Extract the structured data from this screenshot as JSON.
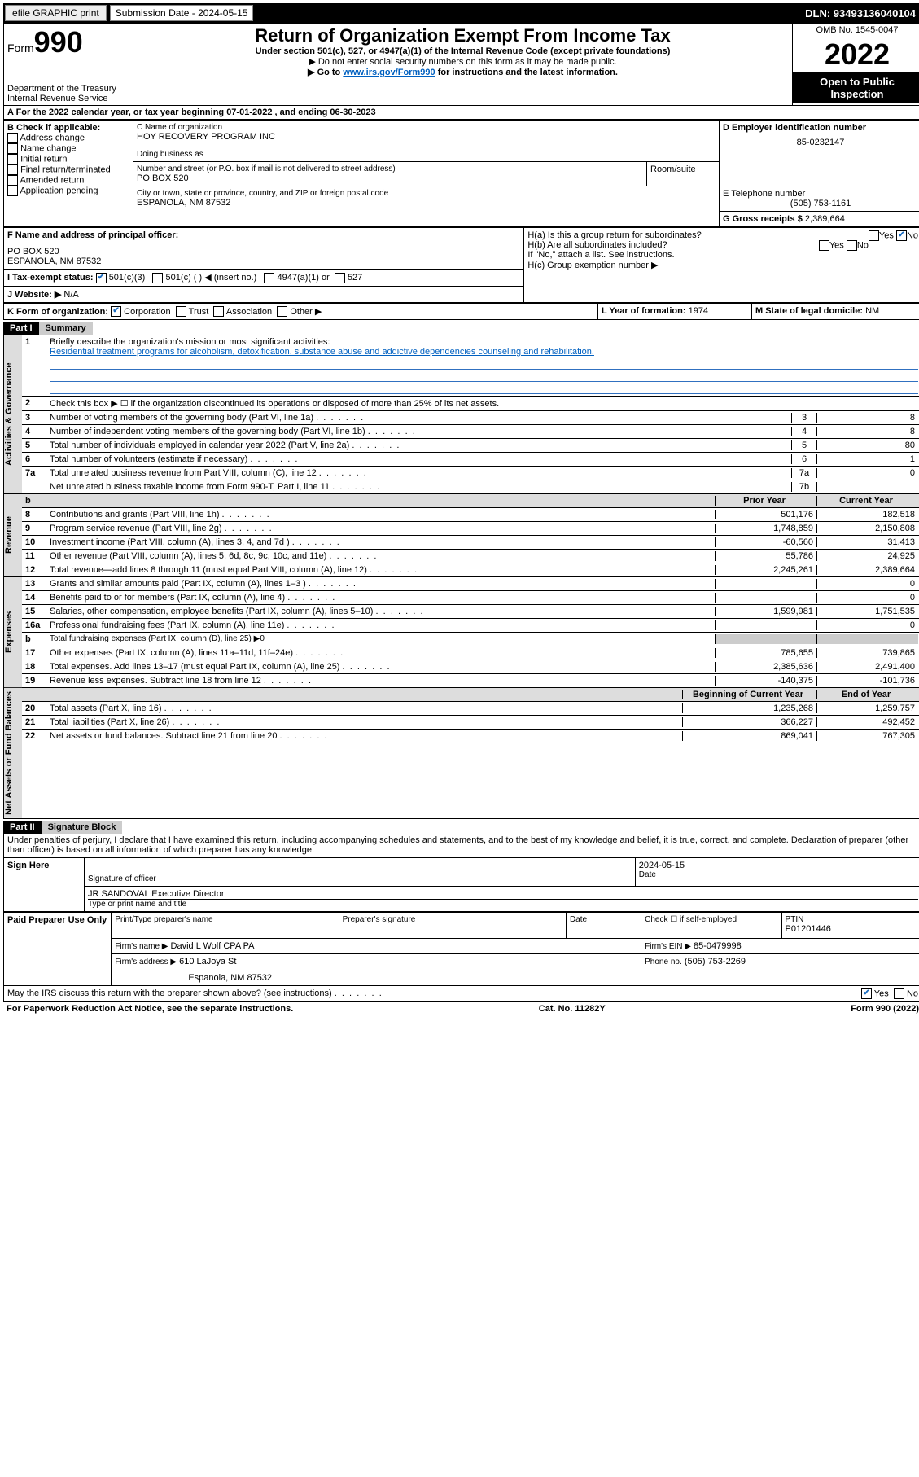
{
  "top": {
    "efile": "efile GRAPHIC print",
    "sub_label": "Submission Date - 2024-05-15",
    "dln": "DLN: 93493136040104"
  },
  "header": {
    "form_label": "Form",
    "form_num": "990",
    "dept": "Department of the Treasury",
    "irs": "Internal Revenue Service",
    "title": "Return of Organization Exempt From Income Tax",
    "sub1": "Under section 501(c), 527, or 4947(a)(1) of the Internal Revenue Code (except private foundations)",
    "sub2": "▶ Do not enter social security numbers on this form as it may be made public.",
    "sub3a": "▶ Go to ",
    "sub3_link": "www.irs.gov/Form990",
    "sub3b": " for instructions and the latest information.",
    "omb": "OMB No. 1545-0047",
    "year": "2022",
    "open": "Open to Public Inspection"
  },
  "a_line": {
    "a": "A For the 2022 calendar year, or tax year beginning 07-01-2022",
    "a2": ", and ending 06-30-2023"
  },
  "box_b": {
    "label": "B Check if applicable:",
    "items": [
      "Address change",
      "Name change",
      "Initial return",
      "Final return/terminated",
      "Amended return",
      "Application pending"
    ]
  },
  "box_c": {
    "label": "C Name of organization",
    "name": "HOY RECOVERY PROGRAM INC",
    "dba_label": "Doing business as",
    "addr_label": "Number and street (or P.O. box if mail is not delivered to street address)",
    "room_label": "Room/suite",
    "addr": "PO BOX 520",
    "city_label": "City or town, state or province, country, and ZIP or foreign postal code",
    "city": "ESPANOLA, NM  87532"
  },
  "box_d": {
    "label": "D Employer identification number",
    "ein": "85-0232147"
  },
  "box_e": {
    "label": "E Telephone number",
    "phone": "(505) 753-1161"
  },
  "box_g": {
    "label": "G Gross receipts $",
    "val": "2,389,664"
  },
  "box_f": {
    "label": "F Name and address of principal officer:",
    "addr1": "PO BOX 520",
    "addr2": "ESPANOLA, NM  87532"
  },
  "box_h": {
    "ha": "H(a)  Is this a group return for subordinates?",
    "hb": "H(b)  Are all subordinates included?",
    "hb_note": "If \"No,\" attach a list. See instructions.",
    "hc": "H(c)  Group exemption number ▶",
    "yes": "Yes",
    "no": "No"
  },
  "box_i": {
    "label": "I  Tax-exempt status:",
    "c3": "501(c)(3)",
    "c": "501(c) (   ) ◀ (insert no.)",
    "a1": "4947(a)(1) or",
    "s527": "527"
  },
  "box_j": {
    "label": "J  Website: ▶",
    "val": "N/A"
  },
  "box_k": {
    "label": "K Form of organization:",
    "corp": "Corporation",
    "trust": "Trust",
    "assoc": "Association",
    "other": "Other ▶"
  },
  "box_l": {
    "label": "L Year of formation:",
    "val": "1974"
  },
  "box_m": {
    "label": "M State of legal domicile:",
    "val": "NM"
  },
  "part1": {
    "title": "Part I",
    "sub": "Summary",
    "q1": "Briefly describe the organization's mission or most significant activities:",
    "q1_ans": "Residential treatment programs for alcoholism, detoxification, substance abuse and addictive dependencies counseling and rehabilitation.",
    "q2": "Check this box ▶ ☐  if the organization discontinued its operations or disposed of more than 25% of its net assets.",
    "side_act": "Activities & Governance",
    "side_rev": "Revenue",
    "side_exp": "Expenses",
    "side_net": "Net Assets or Fund Balances",
    "col_prior": "Prior Year",
    "col_curr": "Current Year",
    "col_beg": "Beginning of Current Year",
    "col_end": "End of Year",
    "rows_gov": [
      {
        "n": "3",
        "t": "Number of voting members of the governing body (Part VI, line 1a)",
        "nb": "3",
        "v": "8"
      },
      {
        "n": "4",
        "t": "Number of independent voting members of the governing body (Part VI, line 1b)",
        "nb": "4",
        "v": "8"
      },
      {
        "n": "5",
        "t": "Total number of individuals employed in calendar year 2022 (Part V, line 2a)",
        "nb": "5",
        "v": "80"
      },
      {
        "n": "6",
        "t": "Total number of volunteers (estimate if necessary)",
        "nb": "6",
        "v": "1"
      },
      {
        "n": "7a",
        "t": "Total unrelated business revenue from Part VIII, column (C), line 12",
        "nb": "7a",
        "v": "0"
      },
      {
        "n": "",
        "t": "Net unrelated business taxable income from Form 990-T, Part I, line 11",
        "nb": "7b",
        "v": ""
      }
    ],
    "rows_rev": [
      {
        "n": "8",
        "t": "Contributions and grants (Part VIII, line 1h)",
        "p": "501,176",
        "c": "182,518"
      },
      {
        "n": "9",
        "t": "Program service revenue (Part VIII, line 2g)",
        "p": "1,748,859",
        "c": "2,150,808"
      },
      {
        "n": "10",
        "t": "Investment income (Part VIII, column (A), lines 3, 4, and 7d )",
        "p": "-60,560",
        "c": "31,413"
      },
      {
        "n": "11",
        "t": "Other revenue (Part VIII, column (A), lines 5, 6d, 8c, 9c, 10c, and 11e)",
        "p": "55,786",
        "c": "24,925"
      },
      {
        "n": "12",
        "t": "Total revenue—add lines 8 through 11 (must equal Part VIII, column (A), line 12)",
        "p": "2,245,261",
        "c": "2,389,664"
      }
    ],
    "rows_exp": [
      {
        "n": "13",
        "t": "Grants and similar amounts paid (Part IX, column (A), lines 1–3 )",
        "p": "",
        "c": "0"
      },
      {
        "n": "14",
        "t": "Benefits paid to or for members (Part IX, column (A), line 4)",
        "p": "",
        "c": "0"
      },
      {
        "n": "15",
        "t": "Salaries, other compensation, employee benefits (Part IX, column (A), lines 5–10)",
        "p": "1,599,981",
        "c": "1,751,535"
      },
      {
        "n": "16a",
        "t": "Professional fundraising fees (Part IX, column (A), line 11e)",
        "p": "",
        "c": "0"
      },
      {
        "n": "b",
        "t": "Total fundraising expenses (Part IX, column (D), line 25) ▶0",
        "p": "",
        "c": ""
      },
      {
        "n": "17",
        "t": "Other expenses (Part IX, column (A), lines 11a–11d, 11f–24e)",
        "p": "785,655",
        "c": "739,865"
      },
      {
        "n": "18",
        "t": "Total expenses. Add lines 13–17 (must equal Part IX, column (A), line 25)",
        "p": "2,385,636",
        "c": "2,491,400"
      },
      {
        "n": "19",
        "t": "Revenue less expenses. Subtract line 18 from line 12",
        "p": "-140,375",
        "c": "-101,736"
      }
    ],
    "rows_net": [
      {
        "n": "20",
        "t": "Total assets (Part X, line 16)",
        "p": "1,235,268",
        "c": "1,259,757"
      },
      {
        "n": "21",
        "t": "Total liabilities (Part X, line 26)",
        "p": "366,227",
        "c": "492,452"
      },
      {
        "n": "22",
        "t": "Net assets or fund balances. Subtract line 21 from line 20",
        "p": "869,041",
        "c": "767,305"
      }
    ]
  },
  "part2": {
    "title": "Part II",
    "sub": "Signature Block",
    "decl": "Under penalties of perjury, I declare that I have examined this return, including accompanying schedules and statements, and to the best of my knowledge and belief, it is true, correct, and complete. Declaration of preparer (other than officer) is based on all information of which preparer has any knowledge.",
    "sign_here": "Sign Here",
    "sig_officer": "Signature of officer",
    "sig_date": "Date",
    "sig_date_val": "2024-05-15",
    "name_title": "JR SANDOVAL Executive Director",
    "type_name": "Type or print name and title",
    "paid": "Paid Preparer Use Only",
    "prep_name_h": "Print/Type preparer's name",
    "prep_sig_h": "Preparer's signature",
    "date_h": "Date",
    "check_self": "Check ☐  if self-employed",
    "ptin_h": "PTIN",
    "ptin": "P01201446",
    "firm_name_l": "Firm's name    ▶",
    "firm_name": "David L Wolf CPA PA",
    "firm_ein_l": "Firm's EIN ▶",
    "firm_ein": "85-0479998",
    "firm_addr_l": "Firm's address ▶",
    "firm_addr": "610 LaJoya St",
    "firm_city": "Espanola, NM  87532",
    "phone_l": "Phone no.",
    "phone": "(505) 753-2269",
    "may_irs": "May the IRS discuss this return with the preparer shown above? (see instructions)"
  },
  "footer": {
    "paperwork": "For Paperwork Reduction Act Notice, see the separate instructions.",
    "cat": "Cat. No. 11282Y",
    "form": "Form 990 (2022)"
  }
}
